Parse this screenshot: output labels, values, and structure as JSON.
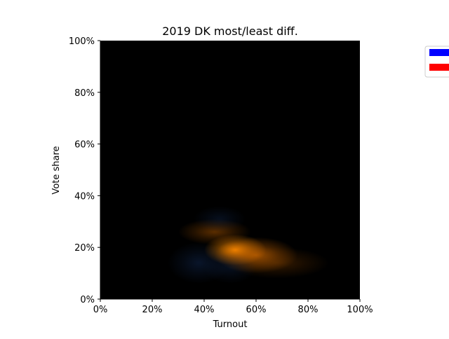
{
  "chart_data": {
    "type": "heatmap",
    "title": "2019 DK most/least diff.",
    "xlabel": "Turnout",
    "ylabel": "Vote share",
    "xlim": [
      0,
      100
    ],
    "ylim": [
      0,
      100
    ],
    "x_ticks": [
      "0%",
      "20%",
      "40%",
      "60%",
      "80%",
      "100%"
    ],
    "y_ticks": [
      "0%",
      "20%",
      "40%",
      "60%",
      "80%",
      "100%"
    ],
    "x_tick_values": [
      0,
      20,
      40,
      60,
      80,
      100
    ],
    "y_tick_values": [
      0,
      20,
      40,
      60,
      80,
      100
    ],
    "background_color": "#000000",
    "grid": false,
    "legend_position": "upper-right",
    "legend": [
      {
        "name": "",
        "color": "#0000ff"
      },
      {
        "name": "",
        "color": "#ff0000"
      }
    ],
    "blobs": [
      {
        "color": "#ff8c00",
        "x": 52,
        "y": 19,
        "sx": 6,
        "sy": 3,
        "intensity": 0.95
      },
      {
        "color": "#e07000",
        "x": 60,
        "y": 17,
        "sx": 8,
        "sy": 3.5,
        "intensity": 0.7
      },
      {
        "color": "#c86400",
        "x": 44,
        "y": 26,
        "sx": 7,
        "sy": 2.5,
        "intensity": 0.45
      },
      {
        "color": "#a05000",
        "x": 68,
        "y": 14,
        "sx": 10,
        "sy": 3,
        "intensity": 0.35
      },
      {
        "color": "#1a3c78",
        "x": 38,
        "y": 14,
        "sx": 6,
        "sy": 4,
        "intensity": 0.35
      },
      {
        "color": "#1a3c78",
        "x": 46,
        "y": 31,
        "sx": 5,
        "sy": 2.5,
        "intensity": 0.25
      },
      {
        "color": "#1a3c78",
        "x": 50,
        "y": 12,
        "sx": 5,
        "sy": 3,
        "intensity": 0.25
      }
    ]
  }
}
